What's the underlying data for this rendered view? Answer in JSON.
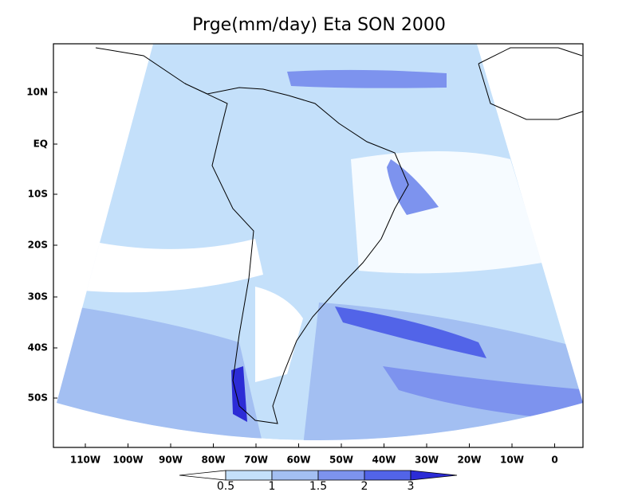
{
  "title": "Prge(mm/day) Eta SON 2000",
  "lat_labels": [
    "10N",
    "EQ",
    "10S",
    "20S",
    "30S",
    "40S",
    "50S"
  ],
  "lon_labels": [
    "110W",
    "100W",
    "90W",
    "80W",
    "70W",
    "60W",
    "50W",
    "40W",
    "30W",
    "20W",
    "10W",
    "0"
  ],
  "colorbar": {
    "levels": [
      0.5,
      1,
      1.5,
      2,
      3
    ],
    "colors": [
      "#ffffff",
      "#c4e0fa",
      "#a3bff2",
      "#7d93ee",
      "#5264e8",
      "#2c2cd6"
    ]
  }
}
